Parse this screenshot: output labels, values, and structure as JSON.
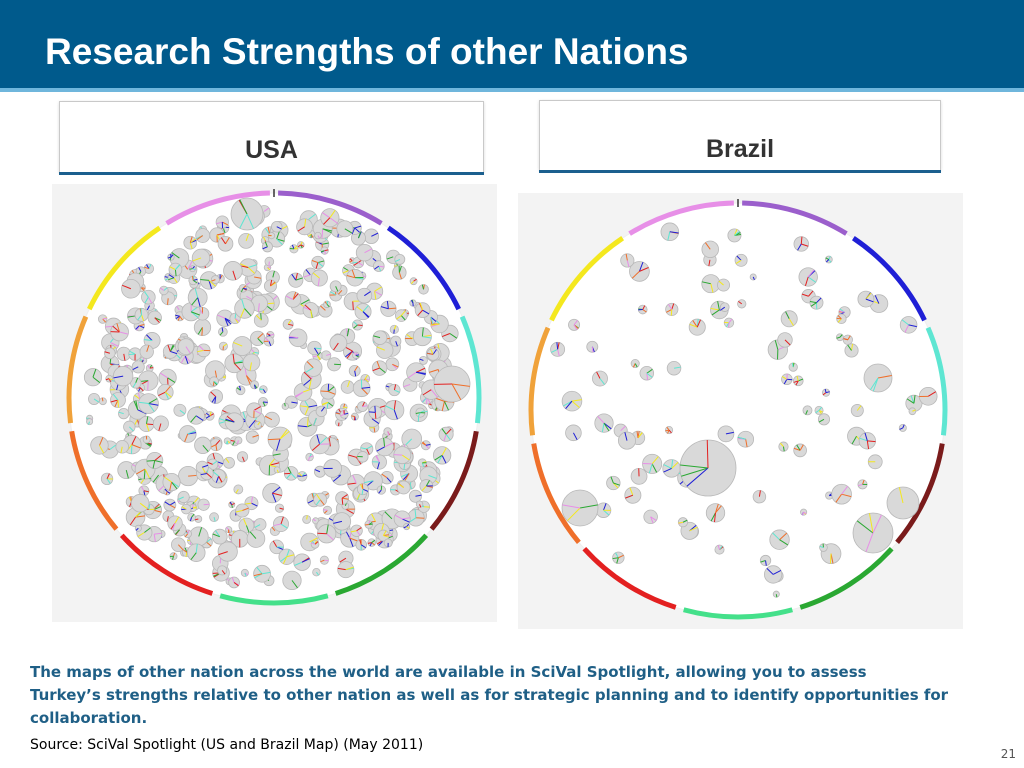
{
  "slide": {
    "title": "Research Strengths of other Nations",
    "left_map_label": "USA",
    "right_map_label": "Brazil",
    "caption_lines": [
      "The maps of other nation across the world are available in SciVal Spotlight, allowing you to assess",
      "Turkey’s strengths relative to other nation as well as for strategic planning and to identify opportunities for",
      "collaboration."
    ],
    "source": "Source: SciVal Spotlight  (US and Brazil Map) (May 2011)",
    "page_number": "21"
  },
  "colors": {
    "title_bar": "#005a8c",
    "caption_text": "#1f5f86",
    "ring_segments": [
      "#9b5fcc",
      "#1f1fd6",
      "#5ee6d2",
      "#7a1b1b",
      "#2aa832",
      "#44e08a",
      "#e32020",
      "#ef6f2a",
      "#f0a23a",
      "#f4e81e",
      "#e78fe7"
    ]
  }
}
